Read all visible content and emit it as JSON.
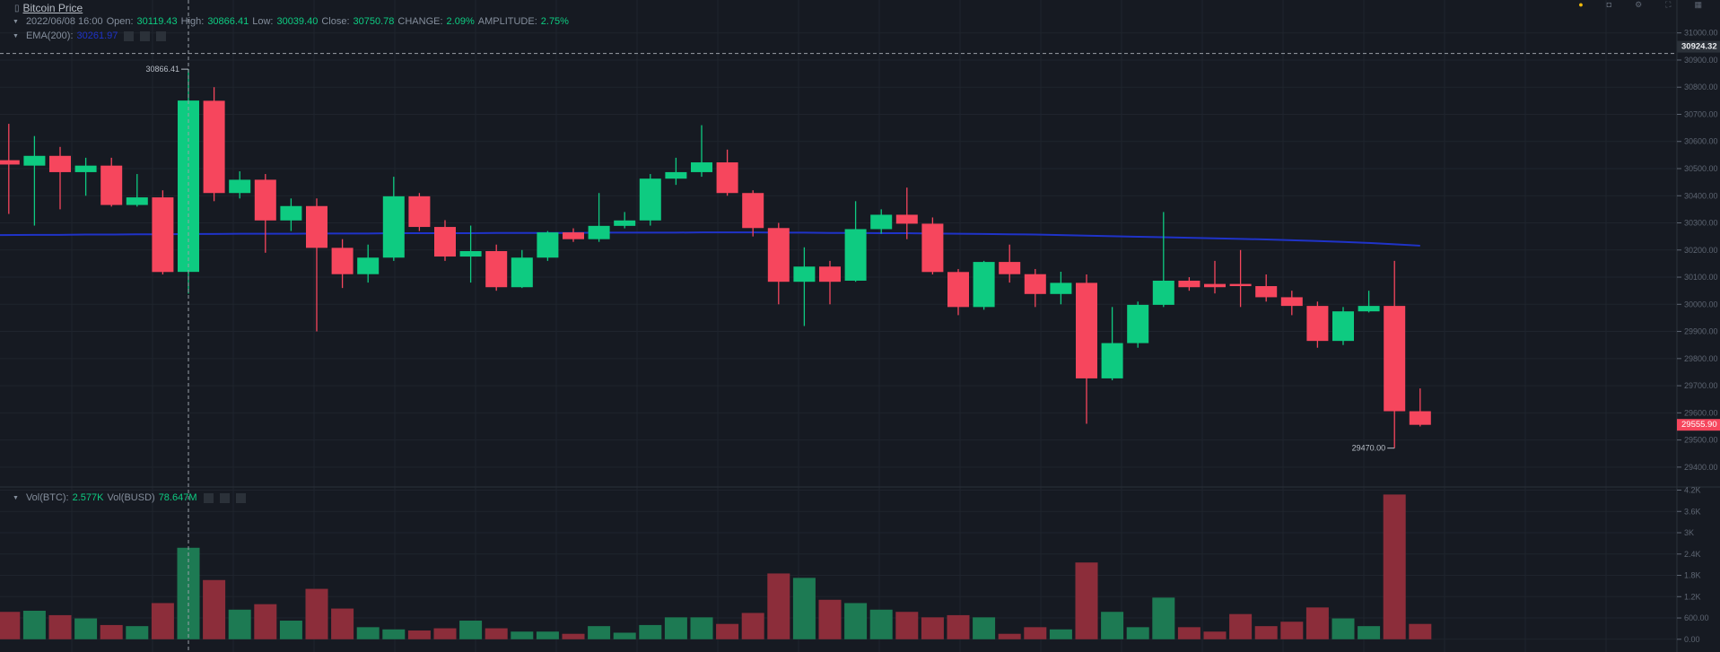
{
  "header": {
    "title": "Bitcoin Price",
    "date": "2022/06/08 16:00",
    "open_label": "Open:",
    "open": "30119.43",
    "high_label": "High:",
    "high": "30866.41",
    "low_label": "Low:",
    "low": "30039.40",
    "close_label": "Close:",
    "close": "30750.78",
    "change_label": "CHANGE:",
    "change": "2.09%",
    "amplitude_label": "AMPLITUDE:",
    "amplitude": "2.75%",
    "ema_label": "EMA(200):",
    "ema_value": "30261.97"
  },
  "volume_header": {
    "btc_label": "Vol(BTC):",
    "btc": "2.577K",
    "busd_label": "Vol(BUSD)",
    "busd": "78.647M"
  },
  "colors": {
    "up": "#0ecb81",
    "down": "#f6465d",
    "vol_up": "#1d7a53",
    "vol_down": "#8c2d3a",
    "ema": "#1f33c8",
    "background": "#161a22",
    "grid": "#1f242d"
  },
  "chart_data": {
    "type": "candlestick",
    "price_axis": {
      "ylim": [
        29350,
        31050
      ],
      "ticks": [
        "31000.00",
        "30900.00",
        "30800.00",
        "30700.00",
        "30600.00",
        "30500.00",
        "30400.00",
        "30300.00",
        "30200.00",
        "30100.00",
        "30000.00",
        "29900.00",
        "29800.00",
        "29700.00",
        "29600.00",
        "29500.00",
        "29400.00"
      ]
    },
    "volume_axis": {
      "ylim": [
        0,
        4200
      ],
      "ticks": [
        "4.2K",
        "3.6K",
        "3K",
        "2.4K",
        "1.8K",
        "1.2K",
        "600.00",
        "0.00"
      ]
    },
    "crosshair_price": "30924.32",
    "last_price": "29555.90",
    "high_marker": "30866.41",
    "low_marker": "29470.00",
    "candles": [
      [
        30531,
        30515,
        30665,
        30333,
        772
      ],
      [
        30511,
        30547,
        30620,
        30290,
        803
      ],
      [
        30547,
        30487,
        30580,
        30350,
        679
      ],
      [
        30487,
        30511,
        30540,
        30400,
        587
      ],
      [
        30511,
        30366,
        30540,
        30360,
        401
      ],
      [
        30366,
        30394,
        30480,
        30360,
        370
      ],
      [
        30394,
        30119,
        30420,
        30110,
        1019
      ],
      [
        30119.43,
        30750.78,
        30866.41,
        30039.4,
        2577
      ],
      [
        30750,
        30410,
        30800,
        30380,
        1668
      ],
      [
        30410,
        30459,
        30490,
        30390,
        834
      ],
      [
        30459,
        30309,
        30480,
        30190,
        988
      ],
      [
        30309,
        30362,
        30390,
        30270,
        525
      ],
      [
        30362,
        30208,
        30390,
        29900,
        1420
      ],
      [
        30208,
        30111,
        30240,
        30060,
        865
      ],
      [
        30111,
        30172,
        30220,
        30080,
        340
      ],
      [
        30172,
        30398,
        30470,
        30160,
        278
      ],
      [
        30398,
        30285,
        30410,
        30270,
        247
      ],
      [
        30285,
        30176,
        30310,
        30160,
        309
      ],
      [
        30176,
        30196,
        30290,
        30080,
        525
      ],
      [
        30196,
        30063,
        30220,
        30050,
        309
      ],
      [
        30063,
        30172,
        30200,
        30060,
        216
      ],
      [
        30172,
        30265,
        30270,
        30160,
        216
      ],
      [
        30265,
        30240,
        30280,
        30230,
        154
      ],
      [
        30240,
        30289,
        30410,
        30230,
        370
      ],
      [
        30289,
        30309,
        30340,
        30280,
        185
      ],
      [
        30309,
        30463,
        30480,
        30290,
        401
      ],
      [
        30463,
        30487,
        30540,
        30440,
        618
      ],
      [
        30487,
        30523,
        30660,
        30470,
        618
      ],
      [
        30523,
        30410,
        30570,
        30400,
        432
      ],
      [
        30410,
        30281,
        30420,
        30250,
        741
      ],
      [
        30281,
        30083,
        30300,
        30000,
        1853
      ],
      [
        30083,
        30139,
        30210,
        29920,
        1729
      ],
      [
        30139,
        30083,
        30160,
        30000,
        1112
      ],
      [
        30087,
        30277,
        30380,
        30083,
        1019
      ],
      [
        30277,
        30330,
        30350,
        30260,
        834
      ],
      [
        30330,
        30297,
        30430,
        30240,
        772
      ],
      [
        30297,
        30119,
        30320,
        30110,
        618
      ],
      [
        30119,
        29990,
        30130,
        29960,
        679
      ],
      [
        29990,
        30156,
        30160,
        29980,
        618
      ],
      [
        30156,
        30111,
        30220,
        30080,
        154
      ],
      [
        30111,
        30038,
        30130,
        29990,
        340
      ],
      [
        30038,
        30079,
        30120,
        30000,
        278
      ],
      [
        30079,
        29727,
        30110,
        29560,
        2162
      ],
      [
        29727,
        29857,
        29990,
        29720,
        772
      ],
      [
        29857,
        29998,
        30010,
        29840,
        340
      ],
      [
        29998,
        30087,
        30340,
        29990,
        1173
      ],
      [
        30087,
        30063,
        30100,
        30050,
        340
      ],
      [
        30075,
        30063,
        30160,
        30040,
        216
      ],
      [
        30075,
        30067,
        30200,
        29990,
        710
      ],
      [
        30067,
        30026,
        30110,
        30010,
        370
      ],
      [
        30026,
        29994,
        30050,
        29960,
        494
      ],
      [
        29994,
        29865,
        30010,
        29840,
        896
      ],
      [
        29865,
        29974,
        29990,
        29850,
        587
      ],
      [
        29974,
        29994,
        30050,
        29970,
        370
      ],
      [
        29994,
        29606,
        30160,
        29470,
        4076
      ],
      [
        29606,
        29555.9,
        29690,
        29550,
        432
      ]
    ],
    "candle_fields": [
      "open",
      "close",
      "high",
      "low",
      "volume_btc"
    ],
    "ema200": [
      30255,
      30256,
      30256,
      30257,
      30257,
      30258,
      30258,
      30259,
      30259,
      30260,
      30260,
      30260,
      30261,
      30261,
      30261,
      30262,
      30262,
      30262,
      30262,
      30263,
      30263,
      30263,
      30263,
      30264,
      30264,
      30264,
      30264,
      30265,
      30265,
      30265,
      30264,
      30264,
      30263,
      30263,
      30262,
      30262,
      30261,
      30260,
      30259,
      30258,
      30257,
      30255,
      30253,
      30251,
      30249,
      30247,
      30245,
      30243,
      30241,
      30239,
      30236,
      30233,
      30230,
      30226,
      30221,
      30216
    ]
  }
}
